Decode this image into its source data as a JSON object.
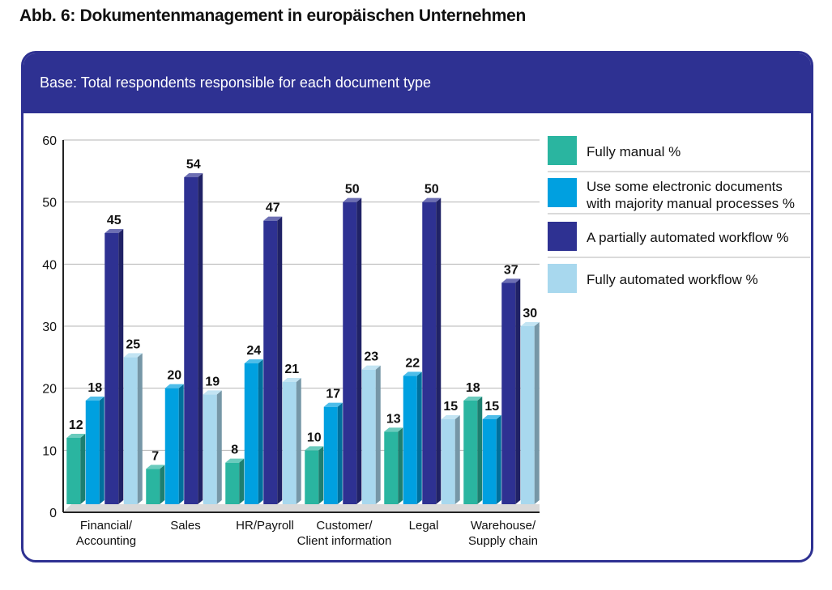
{
  "page": {
    "title": "Abb. 6: Dokumentenmanagement in europäischen Unternehmen",
    "subtitle": "Base: Total respondents responsible for each document type"
  },
  "chart_data": {
    "type": "bar",
    "title": "",
    "xlabel": "",
    "ylabel": "",
    "ylim": [
      0,
      60
    ],
    "yticks": [
      0,
      10,
      20,
      30,
      40,
      50,
      60
    ],
    "grid": true,
    "legend_position": "right",
    "categories": [
      [
        "Financial/",
        "Accounting"
      ],
      [
        "Sales"
      ],
      [
        "HR/Payroll"
      ],
      [
        "Customer/",
        "Client information"
      ],
      [
        "Legal"
      ],
      [
        "Warehouse/",
        "Supply chain"
      ]
    ],
    "series": [
      {
        "name": [
          "Fully manual %"
        ],
        "color": "#2ab5a0",
        "values": [
          12,
          7,
          8,
          10,
          13,
          18
        ],
        "labels": [
          "12",
          "7",
          "8",
          "10",
          "13",
          "18"
        ]
      },
      {
        "name": [
          "Use some electronic documents",
          "with majority manual processes %"
        ],
        "color": "#00a0e0",
        "values": [
          18,
          20,
          24,
          17,
          22,
          15
        ],
        "labels": [
          "18",
          "20",
          "24",
          "17",
          "22",
          "15"
        ]
      },
      {
        "name": [
          "A partially automated workflow %"
        ],
        "color": "#2e3192",
        "values": [
          45,
          54,
          47,
          50,
          50,
          37
        ],
        "labels": [
          "45",
          "54",
          "47",
          "50",
          "50",
          "37"
        ]
      },
      {
        "name": [
          "Fully automated workflow %"
        ],
        "color": "#a8d8ee",
        "values": [
          25,
          19,
          21,
          23,
          15,
          30
        ],
        "labels": [
          "25",
          "19",
          "21",
          "23",
          "15",
          "30"
        ]
      }
    ]
  }
}
